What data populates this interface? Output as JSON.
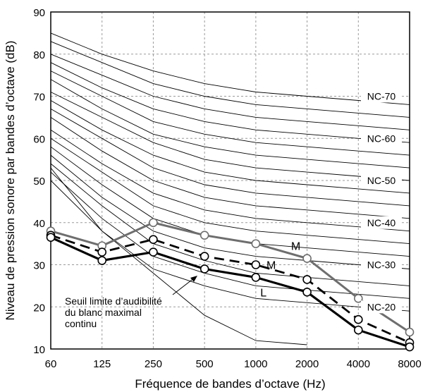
{
  "chart_data": {
    "type": "line",
    "title": "",
    "xlabel": "Fréquence de bandes d’octave (Hz)",
    "ylabel": "Niveau de pression sonore  par bandes d’octave (dB)",
    "x_categories": [
      "60",
      "125",
      "250",
      "500",
      "1000",
      "2000",
      "4000",
      "8000"
    ],
    "ylim": [
      10,
      90
    ],
    "yticks": [
      "10",
      "20",
      "30",
      "40",
      "50",
      "60",
      "70",
      "80",
      "90"
    ],
    "grid": true,
    "nc_curves": [
      {
        "values": [
          85,
          80,
          76,
          73,
          71,
          70,
          69,
          68
        ]
      },
      {
        "values": [
          83,
          78,
          73,
          70,
          68,
          67,
          66,
          65
        ]
      },
      {
        "values": [
          80,
          75,
          70,
          67,
          65,
          64,
          63,
          62
        ]
      },
      {
        "values": [
          78,
          72,
          67,
          64,
          62,
          61,
          60,
          59
        ]
      },
      {
        "values": [
          76,
          70,
          64,
          61,
          59,
          58,
          57,
          56
        ]
      },
      {
        "values": [
          74,
          67,
          61,
          58,
          56,
          55,
          54,
          53
        ]
      },
      {
        "values": [
          71,
          65,
          59,
          55,
          53,
          52,
          51,
          50
        ]
      },
      {
        "values": [
          69,
          62,
          56,
          52,
          50,
          49,
          48,
          47
        ]
      },
      {
        "values": [
          67,
          60,
          53,
          49,
          47,
          46,
          45,
          44
        ]
      },
      {
        "values": [
          65,
          57,
          50,
          46,
          44,
          43,
          42,
          41
        ]
      },
      {
        "values": [
          62,
          54,
          47,
          43,
          41,
          40,
          39,
          38
        ]
      },
      {
        "values": [
          60,
          52,
          44,
          40,
          38,
          37,
          36,
          35
        ]
      },
      {
        "values": [
          58,
          49,
          41,
          37,
          35,
          34,
          33,
          32
        ]
      },
      {
        "values": [
          56,
          46,
          38,
          34,
          32,
          31,
          30,
          29
        ]
      },
      {
        "values": [
          54,
          44,
          35,
          31,
          28,
          27,
          26,
          25
        ]
      },
      {
        "values": [
          52,
          41,
          32,
          28,
          25,
          24,
          23,
          22
        ]
      },
      {
        "values": [
          50,
          38,
          29,
          25,
          22,
          21,
          20,
          19
        ]
      }
    ],
    "nc_labels": [
      {
        "text": "NC-70",
        "y": 70
      },
      {
        "text": "NC-60",
        "y": 60
      },
      {
        "text": "NC-50",
        "y": 50
      },
      {
        "text": "NC-40",
        "y": 40
      },
      {
        "text": "NC-30",
        "y": 30
      },
      {
        "text": "NC-20",
        "y": 20
      }
    ],
    "threshold_curve": {
      "values": [
        53,
        38,
        28,
        18,
        12,
        11,
        null,
        null
      ],
      "annotation": [
        "Seuil  limite  d’audibilité",
        "du blanc maximal",
        "continu"
      ]
    },
    "series": [
      {
        "label": "M",
        "style": "solid-gray",
        "color": "#6e6e6e",
        "values": [
          38,
          34.5,
          40,
          37,
          35,
          31.5,
          22,
          14
        ]
      },
      {
        "label": "M",
        "style": "dashed-black",
        "color": "#000000",
        "values": [
          37,
          33,
          36,
          32,
          30,
          26.5,
          17,
          11.5
        ]
      },
      {
        "label": "L",
        "style": "solid-black",
        "color": "#000000",
        "values": [
          36.5,
          31,
          33,
          29,
          27,
          23.5,
          14.5,
          10.5
        ]
      }
    ],
    "series_label_positions": [
      {
        "x_index": 4.78,
        "y": 34.5
      },
      {
        "x_index": 4.3,
        "y": 30
      },
      {
        "x_index": 4.15,
        "y": 23.5
      }
    ]
  }
}
